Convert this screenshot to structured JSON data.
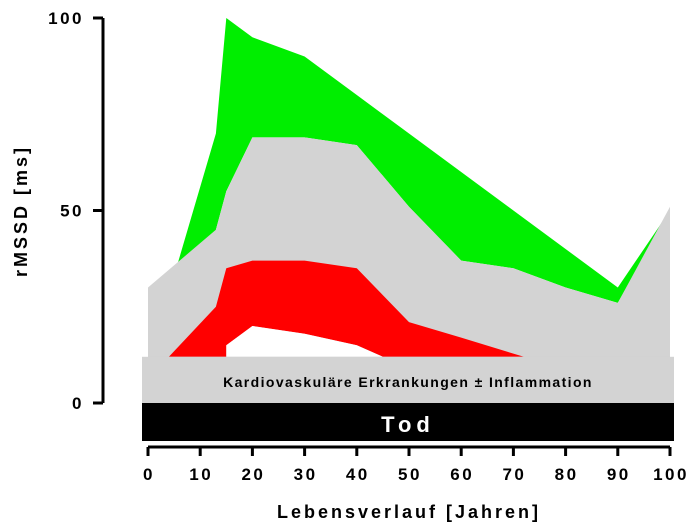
{
  "chart_data": {
    "type": "area",
    "xlabel": "Lebensverlauf [Jahren]",
    "ylabel": "rMSSD [ms]",
    "xlim": [
      0,
      100
    ],
    "ylim": [
      0,
      100
    ],
    "x_ticks": [
      "0",
      "10",
      "20",
      "30",
      "40",
      "50",
      "60",
      "70",
      "80",
      "90",
      "100"
    ],
    "y_ticks": [
      "0",
      "50",
      "100"
    ],
    "grid": false,
    "colors": {
      "green": "#00ee00",
      "gray": "#d3d3d3",
      "red": "#ff0000",
      "black": "#000000"
    },
    "green_band": {
      "upper": [
        [
          0,
          10
        ],
        [
          13,
          70
        ],
        [
          15,
          100
        ],
        [
          20,
          95
        ],
        [
          30,
          90
        ],
        [
          40,
          80
        ],
        [
          50,
          70
        ],
        [
          60,
          60
        ],
        [
          70,
          50
        ],
        [
          80,
          40
        ],
        [
          90,
          30
        ],
        [
          100,
          50
        ]
      ],
      "lower": [
        [
          0,
          10
        ],
        [
          13,
          45
        ],
        [
          15,
          55
        ],
        [
          20,
          69
        ],
        [
          30,
          69
        ],
        [
          40,
          67
        ],
        [
          50,
          51
        ],
        [
          60,
          37
        ],
        [
          70,
          35
        ],
        [
          80,
          30
        ],
        [
          90,
          26
        ],
        [
          100,
          50
        ]
      ]
    },
    "gray_band": {
      "upper": [
        [
          0,
          30
        ],
        [
          13,
          45
        ],
        [
          15,
          55
        ],
        [
          20,
          69
        ],
        [
          30,
          69
        ],
        [
          40,
          67
        ],
        [
          50,
          51
        ],
        [
          60,
          37
        ],
        [
          70,
          35
        ],
        [
          80,
          30
        ],
        [
          90,
          26
        ],
        [
          100,
          51
        ]
      ],
      "lower": [
        [
          0,
          0
        ],
        [
          100,
          0
        ]
      ]
    },
    "red_band": {
      "upper": [
        [
          4,
          12
        ],
        [
          13,
          25
        ],
        [
          15,
          35
        ],
        [
          20,
          37
        ],
        [
          30,
          37
        ],
        [
          40,
          35
        ],
        [
          50,
          21
        ],
        [
          60,
          17
        ],
        [
          72,
          12
        ]
      ],
      "lower": [
        [
          4,
          12
        ],
        [
          15,
          12
        ],
        [
          15,
          15
        ],
        [
          20,
          20
        ],
        [
          30,
          18
        ],
        [
          40,
          15
        ],
        [
          45,
          12
        ],
        [
          72,
          12
        ]
      ]
    },
    "white_area": [
      [
        15,
        15
      ],
      [
        20,
        20
      ],
      [
        30,
        18
      ],
      [
        40,
        15
      ],
      [
        45,
        12
      ],
      [
        15,
        12
      ]
    ],
    "label_band": {
      "x_range": [
        0,
        100
      ],
      "y_range": [
        0,
        12
      ],
      "label": "Kardiovaskuläre Erkrankungen ± Inflammation"
    },
    "death_bar": {
      "label": "Tod"
    }
  }
}
